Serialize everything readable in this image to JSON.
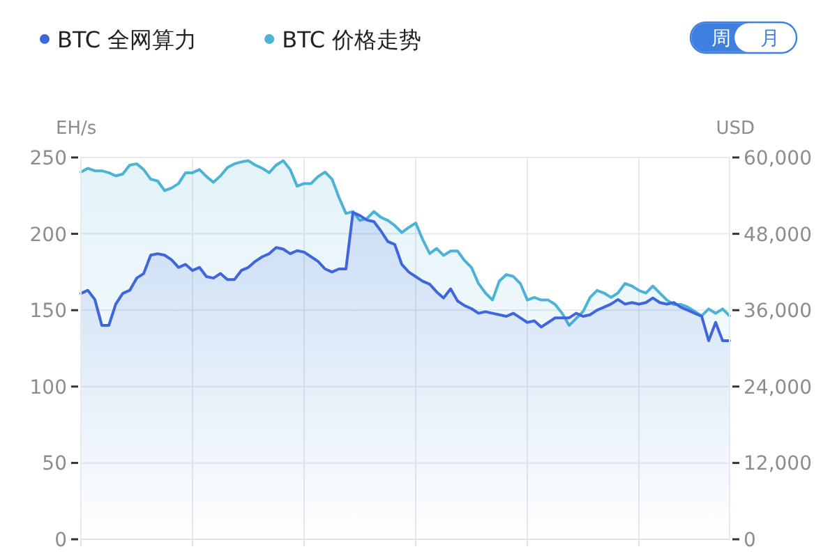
{
  "chart_data": {
    "type": "area",
    "ylabel": "EH/s",
    "y2label": "USD",
    "annotations": [
      "周",
      "月"
    ],
    "categories": [
      null,
      null,
      null,
      null,
      null,
      null,
      null,
      null,
      null,
      null,
      null,
      null,
      null,
      null,
      null,
      null,
      null,
      null,
      null,
      null,
      null,
      null,
      null,
      null,
      null,
      null,
      null,
      null,
      null,
      null,
      null,
      null,
      null,
      null,
      null,
      null,
      null,
      null,
      null,
      null,
      null,
      null,
      null,
      null,
      null,
      null,
      null,
      null,
      null,
      null,
      null,
      null,
      null,
      null,
      null,
      null,
      null,
      null,
      null,
      null,
      null,
      null,
      null,
      null,
      null,
      null,
      null,
      null,
      null,
      null,
      null,
      null,
      null,
      null,
      null,
      null,
      null,
      null,
      null,
      null,
      null,
      null,
      null,
      null,
      null,
      null,
      null,
      null,
      null,
      null,
      null,
      null,
      null,
      null
    ],
    "series": [
      {
        "name": "BTC 全网算力",
        "color": "#3f66dc",
        "values": [
          161,
          163,
          157,
          140,
          140,
          154,
          161,
          163,
          171,
          174,
          186,
          187,
          186,
          183,
          178,
          180,
          176,
          178,
          172,
          171,
          174,
          170,
          170,
          176,
          178,
          182,
          185,
          187,
          191,
          190,
          187,
          189,
          188,
          185,
          182,
          177,
          175,
          177,
          177,
          214,
          212,
          209,
          208,
          202,
          195,
          193,
          180,
          175,
          172,
          169,
          167,
          162,
          158,
          164,
          156,
          153,
          151,
          148,
          149,
          148,
          147,
          146,
          148,
          145,
          142,
          143,
          139,
          142,
          145,
          145,
          145,
          148,
          146,
          147,
          150,
          152,
          154,
          157,
          154,
          155,
          154,
          155,
          158,
          155,
          154,
          155,
          152,
          150,
          148,
          146,
          130,
          142,
          130,
          130
        ]
      },
      {
        "name": "BTC 价格走势",
        "color": "#4db3d6",
        "axis": "y2",
        "values": [
          57700,
          58300,
          57900,
          57900,
          57600,
          57100,
          57400,
          58800,
          59000,
          58100,
          56600,
          56300,
          54800,
          55200,
          55900,
          57600,
          57600,
          58100,
          57000,
          56100,
          57100,
          58400,
          59000,
          59300,
          59500,
          58800,
          58300,
          57600,
          58800,
          59500,
          58100,
          55500,
          55900,
          55900,
          57000,
          57700,
          56600,
          53700,
          51200,
          51500,
          50100,
          50400,
          51500,
          50600,
          50100,
          49300,
          48200,
          49000,
          49700,
          47100,
          44900,
          45700,
          44600,
          45300,
          45300,
          43800,
          42700,
          40200,
          38700,
          37600,
          40600,
          41600,
          41300,
          40200,
          37600,
          38000,
          37600,
          37600,
          36900,
          35500,
          33600,
          34700,
          35800,
          38000,
          39100,
          38700,
          38000,
          38700,
          40200,
          39800,
          39100,
          38700,
          39800,
          38700,
          37600,
          36900,
          36900,
          36500,
          35800,
          35100,
          36200,
          35500,
          36200,
          35100
        ]
      }
    ],
    "ylim": [
      0,
      250
    ],
    "yticks": [
      0,
      50,
      100,
      150,
      200,
      250
    ],
    "y2lim": [
      0,
      60000
    ],
    "y2ticks": [
      {
        "value": 0,
        "label": "0"
      },
      {
        "value": 12000,
        "label": "12,000"
      },
      {
        "value": 24000,
        "label": "24,000"
      },
      {
        "value": 36000,
        "label": "36,000"
      },
      {
        "value": 48000,
        "label": "48,000"
      },
      {
        "value": 60000,
        "label": "60,000"
      }
    ],
    "grid": true,
    "legend": "top left",
    "marker": "none"
  }
}
